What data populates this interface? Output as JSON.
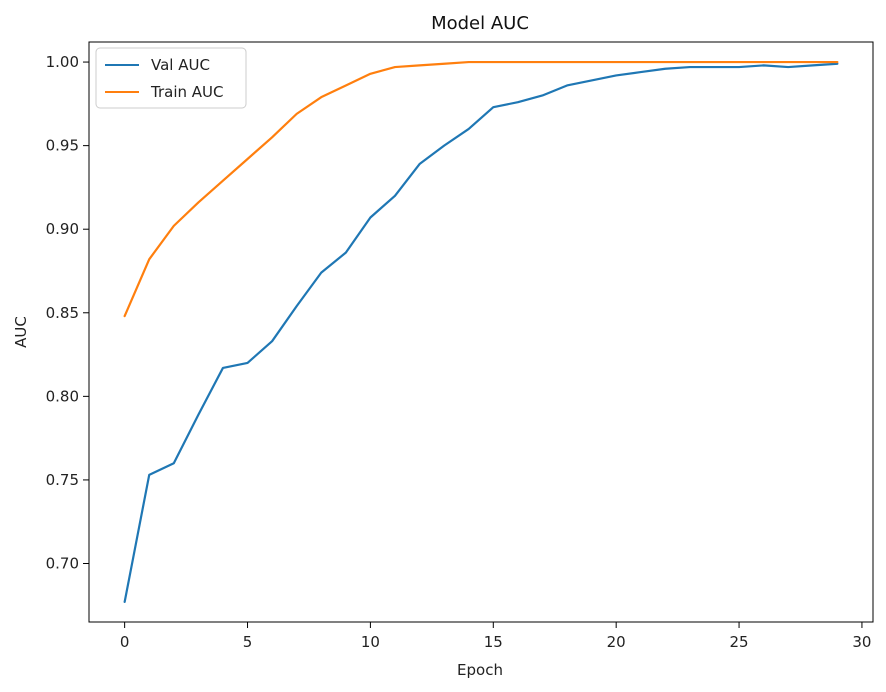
{
  "chart_data": {
    "type": "line",
    "title": "Model AUC",
    "xlabel": "Epoch",
    "ylabel": "AUC",
    "xlim": [
      -1.45,
      30.45
    ],
    "ylim": [
      0.665,
      1.012
    ],
    "xticks": [
      0,
      5,
      10,
      15,
      20,
      25,
      30
    ],
    "yticks": [
      0.7,
      0.75,
      0.8,
      0.85,
      0.9,
      0.95,
      1.0
    ],
    "grid": false,
    "legend_position": "top-left",
    "x": [
      0,
      1,
      2,
      3,
      4,
      5,
      6,
      7,
      8,
      9,
      10,
      11,
      12,
      13,
      14,
      15,
      16,
      17,
      18,
      19,
      20,
      21,
      22,
      23,
      24,
      25,
      26,
      27,
      28,
      29
    ],
    "series": [
      {
        "name": "Val AUC",
        "color": "#1f77b4",
        "values": [
          0.677,
          0.753,
          0.76,
          0.789,
          0.817,
          0.82,
          0.833,
          0.854,
          0.874,
          0.886,
          0.907,
          0.92,
          0.939,
          0.95,
          0.96,
          0.973,
          0.976,
          0.98,
          0.986,
          0.989,
          0.992,
          0.994,
          0.996,
          0.997,
          0.997,
          0.997,
          0.998,
          0.997,
          0.998,
          0.999
        ]
      },
      {
        "name": "Train AUC",
        "color": "#ff7f0e",
        "values": [
          0.848,
          0.882,
          0.902,
          0.916,
          0.929,
          0.942,
          0.955,
          0.969,
          0.979,
          0.986,
          0.993,
          0.997,
          0.998,
          0.999,
          1.0,
          1.0,
          1.0,
          1.0,
          1.0,
          1.0,
          1.0,
          1.0,
          1.0,
          1.0,
          1.0,
          1.0,
          1.0,
          1.0,
          1.0,
          1.0
        ]
      }
    ]
  }
}
